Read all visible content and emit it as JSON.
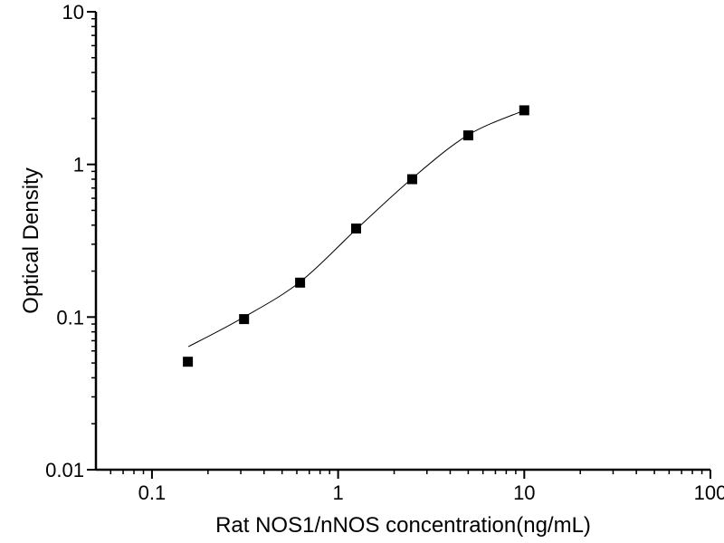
{
  "figure": {
    "background": "#ffffff",
    "axis_color": "#000000",
    "text_color": "#000000",
    "marker_color": "#000000",
    "curve_color": "#000000"
  },
  "chart_data": {
    "type": "scatter",
    "title": "",
    "xlabel": "Rat NOS1/nNOS concentration(ng/mL)",
    "ylabel": "Optical Density",
    "x_scale": "log",
    "y_scale": "log",
    "xlim": [
      0.05,
      100
    ],
    "ylim": [
      0.01,
      10
    ],
    "x_major_ticks": [
      0.1,
      1,
      10,
      100
    ],
    "x_tick_labels": [
      "0.1",
      "1",
      "10",
      "100"
    ],
    "y_major_ticks": [
      0.01,
      0.1,
      1,
      10
    ],
    "y_tick_labels": [
      "0.01",
      "0.1",
      "1",
      "10"
    ],
    "minor_ticks": "log-decades",
    "grid": false,
    "legend": null,
    "series": [
      {
        "name": "standard-points",
        "type": "scatter",
        "marker": "filled-square",
        "marker_size": 11,
        "x": [
          0.156,
          0.3125,
          0.625,
          1.25,
          2.5,
          5,
          10
        ],
        "y": [
          0.051,
          0.097,
          0.168,
          0.38,
          0.8,
          1.55,
          2.26
        ]
      },
      {
        "name": "4pl-fit-curve",
        "type": "line",
        "stroke_width": 1,
        "x": [
          0.157,
          0.3125,
          0.625,
          1.25,
          2.5,
          5,
          10
        ],
        "y": [
          0.064,
          0.1,
          0.17,
          0.375,
          0.81,
          1.56,
          2.26
        ]
      }
    ]
  }
}
